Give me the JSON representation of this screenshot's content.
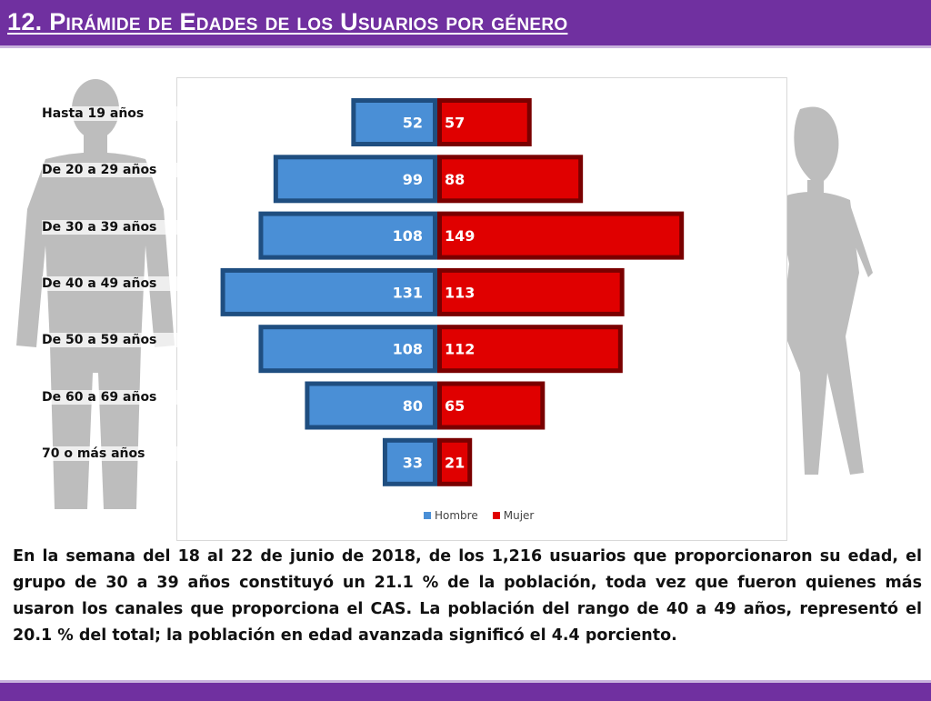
{
  "header": {
    "title": "12. Pirámide de Edades de los Usuarios por género"
  },
  "colors": {
    "accent": "#7030a0",
    "hombre": "#4a8fd6",
    "mujer": "#e00000",
    "silhouette": "#bdbdbd"
  },
  "chart_data": {
    "type": "bar",
    "orientation": "horizontal-pyramid",
    "categories": [
      "Hasta 19 años",
      "De 20 a 29 años",
      "De 30 a 39 años",
      "De 40 a 49 años",
      "De 50 a 59 años",
      "De 60 a 69 años",
      "70 o más años"
    ],
    "series": [
      {
        "name": "Hombre",
        "values": [
          52,
          99,
          108,
          131,
          108,
          80,
          33
        ]
      },
      {
        "name": "Mujer",
        "values": [
          57,
          88,
          149,
          113,
          112,
          65,
          21
        ]
      }
    ],
    "legend": {
      "hombre": "Hombre",
      "mujer": "Mujer",
      "position": "bottom"
    },
    "grid": false
  },
  "summary": "En la semana del 18 al 22 de junio de 2018, de los 1,216 usuarios que proporcionaron su edad, el grupo de 30 a 39 años constituyó un 21.1 % de la población, toda vez que fueron quienes más usaron los canales que proporciona el CAS. La población del rango de 40 a 49 años, representó el 20.1 % del total; la población en edad avanzada significó el 4.4 porciento."
}
